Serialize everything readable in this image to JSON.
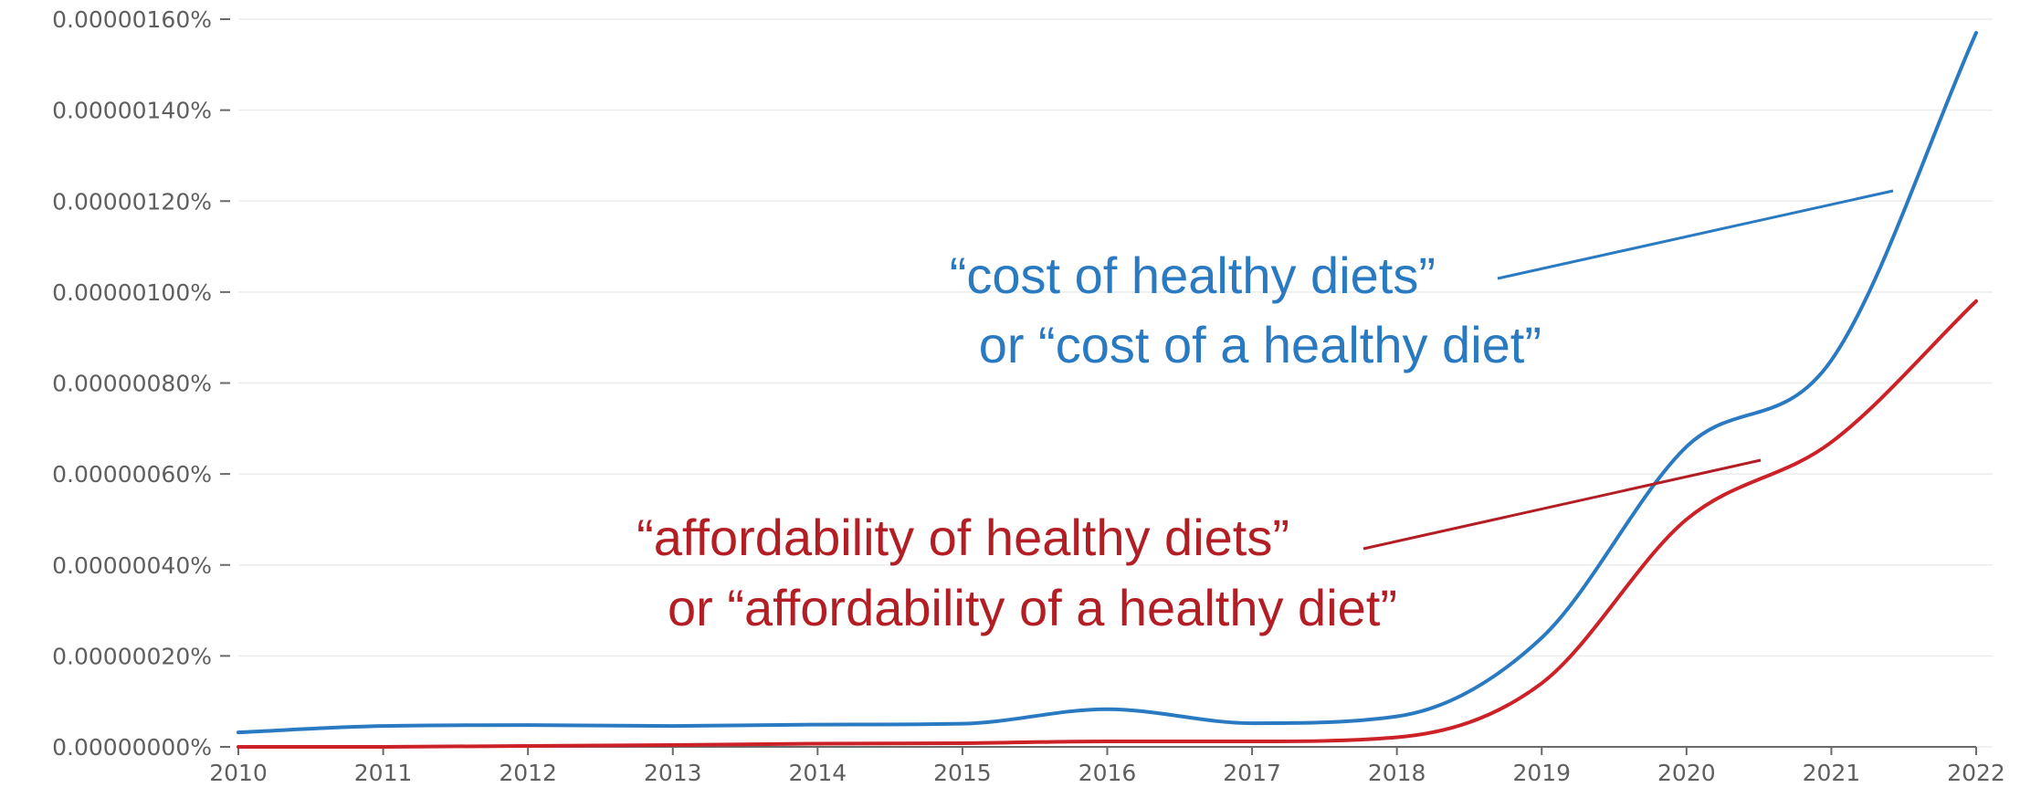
{
  "chart_data": {
    "type": "line",
    "x": [
      2010,
      2011,
      2012,
      2013,
      2014,
      2015,
      2016,
      2017,
      2018,
      2019,
      2020,
      2021,
      2022
    ],
    "xlim": [
      2010,
      2022
    ],
    "ylim": [
      0,
      1.6e-06
    ],
    "y_unit": "%",
    "y_ticks": [
      0,
      2e-07,
      4e-07,
      6e-07,
      8e-07,
      1e-06,
      1.2e-06,
      1.4e-06,
      1.6e-06
    ],
    "y_tick_labels": [
      "0.00000000%",
      "0.00000020%",
      "0.00000040%",
      "0.00000060%",
      "0.00000080%",
      "0.00000100%",
      "0.00000120%",
      "0.00000140%",
      "0.00000160%"
    ],
    "x_tick_labels": [
      "2010",
      "2011",
      "2012",
      "2013",
      "2014",
      "2015",
      "2016",
      "2017",
      "2018",
      "2019",
      "2020",
      "2021",
      "2022"
    ],
    "grid": true,
    "series": [
      {
        "color": "#2a7ac2",
        "values": [
          3.2e-08,
          4.6e-08,
          4.8e-08,
          4.6e-08,
          4.9e-08,
          5.1e-08,
          8.3e-08,
          5.2e-08,
          6.7e-08,
          2.4e-07,
          6.6e-07,
          8.5e-07,
          1.57e-06
        ]
      },
      {
        "color": "#cc2127",
        "values": [
          0.0,
          0.0,
          2e-09,
          4e-09,
          7e-09,
          8e-09,
          1.2e-08,
          1.2e-08,
          2.1e-08,
          1.4e-07,
          5e-07,
          6.7e-07,
          9.8e-07
        ]
      }
    ],
    "annotations": [
      {
        "lines": [
          "“cost of healthy diets”",
          "or “cost of a healthy diet”"
        ],
        "color": "#2a7ac2"
      },
      {
        "lines": [
          "“affordability of healthy diets”",
          "or “affordability of a healthy diet”"
        ],
        "color": "#b21e24"
      }
    ]
  }
}
